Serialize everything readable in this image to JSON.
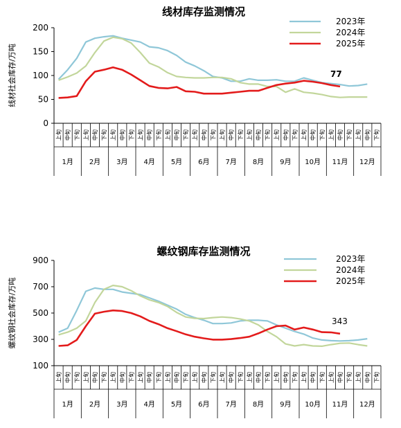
{
  "chart_data": [
    {
      "type": "line",
      "title": "线材库存监测情况",
      "ylabel": "线材社会库存/万吨",
      "xlabel": "",
      "ylim": [
        0,
        200
      ],
      "yticks": [
        "0",
        "50",
        "100",
        "150",
        "200"
      ],
      "x_sub_labels": [
        "上旬",
        "中旬",
        "下旬"
      ],
      "months": [
        "1月",
        "2月",
        "3月",
        "4月",
        "5月",
        "6月",
        "7月",
        "8月",
        "9月",
        "10月",
        "11月",
        "12月"
      ],
      "grid": false,
      "legend_position": "top-right",
      "series": [
        {
          "name": "2023年",
          "color": "#8fc7d8",
          "values": [
            92,
            112,
            136,
            170,
            178,
            181,
            183,
            178,
            174,
            170,
            160,
            158,
            152,
            142,
            128,
            120,
            110,
            98,
            95,
            88,
            88,
            93,
            90,
            90,
            91,
            88,
            88,
            95,
            90,
            85,
            83,
            81,
            78,
            79,
            82
          ]
        },
        {
          "name": "2024年",
          "color": "#c2d69b",
          "values": [
            90,
            97,
            105,
            120,
            148,
            172,
            180,
            177,
            168,
            148,
            126,
            118,
            106,
            98,
            96,
            95,
            95,
            96,
            96,
            93,
            85,
            82,
            82,
            77,
            77,
            65,
            72,
            65,
            63,
            60,
            56,
            54,
            55,
            55,
            55
          ]
        },
        {
          "name": "2025年",
          "color": "#e31b1b",
          "values": [
            53,
            54,
            57,
            88,
            108,
            112,
            117,
            112,
            102,
            90,
            78,
            74,
            73,
            76,
            67,
            66,
            62,
            62,
            62,
            64,
            66,
            68,
            68,
            74,
            80,
            83,
            85,
            89,
            87,
            84,
            80,
            77
          ]
        }
      ],
      "annotation": "77"
    },
    {
      "type": "line",
      "title": "螺纹钢库存监测情况",
      "ylabel": "螺纹钢社会库存/万吨",
      "xlabel": "",
      "ylim": [
        100,
        900
      ],
      "yticks": [
        "100",
        "300",
        "500",
        "700",
        "900"
      ],
      "x_sub_labels": [
        "上旬",
        "中旬",
        "下旬"
      ],
      "months": [
        "1月",
        "2月",
        "3月",
        "4月",
        "5月",
        "6月",
        "7月",
        "8月",
        "9月",
        "10月",
        "11月",
        "12月"
      ],
      "grid": false,
      "legend_position": "top-right",
      "series": [
        {
          "name": "2023年",
          "color": "#8fc7d8",
          "values": [
            355,
            385,
            520,
            665,
            690,
            680,
            680,
            660,
            650,
            640,
            615,
            590,
            560,
            530,
            490,
            465,
            445,
            420,
            420,
            425,
            440,
            445,
            445,
            440,
            410,
            385,
            360,
            340,
            310,
            295,
            290,
            288,
            290,
            295,
            305
          ]
        },
        {
          "name": "2024年",
          "color": "#c2d69b",
          "values": [
            335,
            355,
            385,
            440,
            580,
            680,
            710,
            700,
            670,
            630,
            600,
            580,
            550,
            505,
            470,
            460,
            458,
            465,
            470,
            465,
            455,
            440,
            410,
            360,
            320,
            265,
            250,
            260,
            250,
            248,
            260,
            270,
            272,
            260,
            250
          ]
        },
        {
          "name": "2025年",
          "color": "#e31b1b",
          "values": [
            250,
            255,
            295,
            400,
            495,
            510,
            520,
            515,
            500,
            475,
            440,
            415,
            385,
            362,
            338,
            320,
            308,
            298,
            298,
            302,
            310,
            320,
            345,
            375,
            400,
            405,
            375,
            390,
            375,
            355,
            353,
            343
          ]
        }
      ],
      "annotation": "343"
    }
  ]
}
